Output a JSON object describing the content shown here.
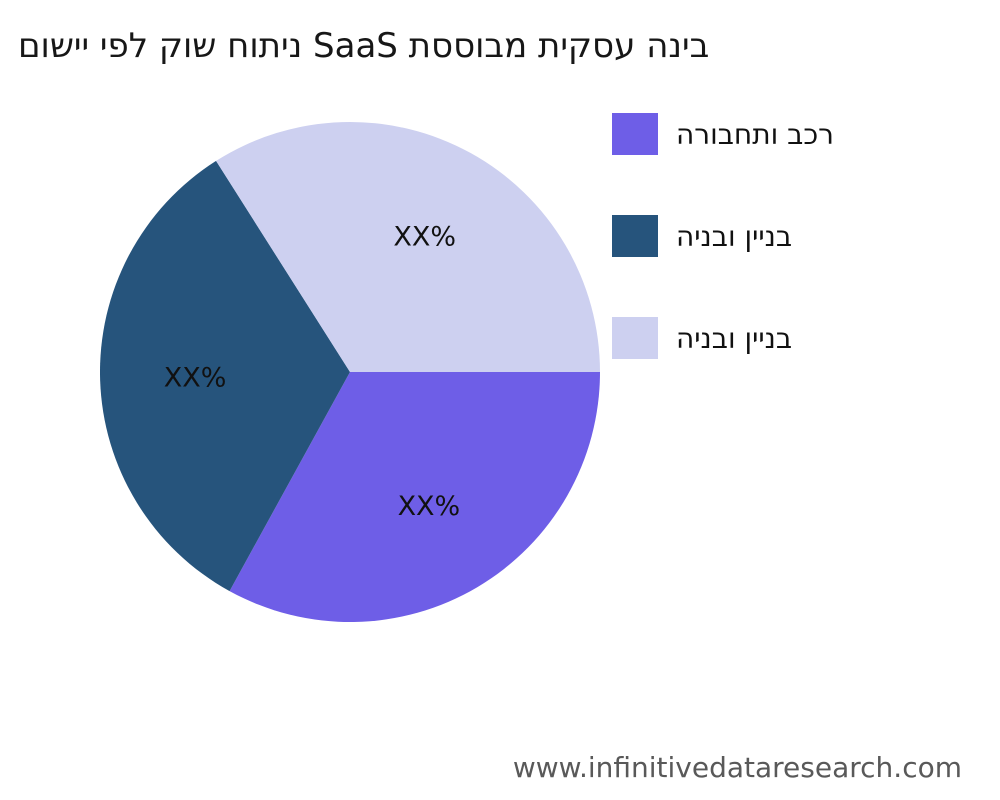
{
  "title": "בינה עסקית מבוססת SaaS ניתוח שוק לפי יישום",
  "footer": {
    "website": "www.infinitivedataresearch.com"
  },
  "chart_data": {
    "type": "pie",
    "title": "בינה עסקית מבוססת SaaS ניתוח שוק לפי יישום",
    "start_angle_deg": 0,
    "direction": "clockwise",
    "legend_position": "right",
    "background_color": "#ffffff",
    "slices": [
      {
        "label": "רכב ותחבורה",
        "value": 33,
        "pct_label": "XX%",
        "color": "#6E5EE7"
      },
      {
        "label": "בניין ובניה",
        "value": 33,
        "pct_label": "XX%",
        "color": "#26547C"
      },
      {
        "label": "בניין ובניה",
        "value": 34,
        "pct_label": "XX%",
        "color": "#CDD0F0"
      }
    ]
  }
}
